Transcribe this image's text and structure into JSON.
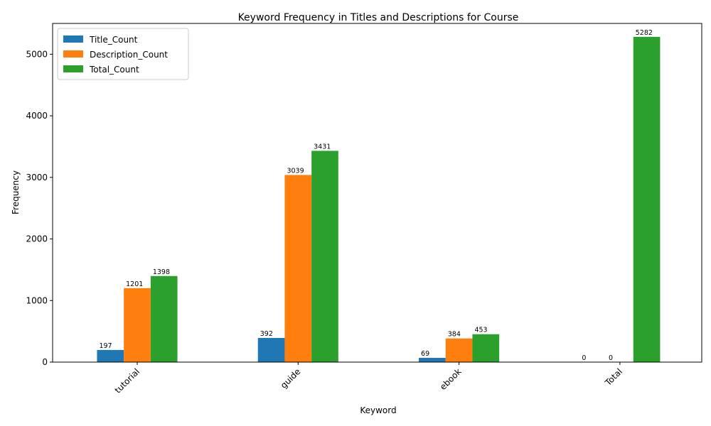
{
  "chart_data": {
    "type": "bar",
    "title": "Keyword Frequency in Titles and Descriptions for Course",
    "xlabel": "Keyword",
    "ylabel": "Frequency",
    "categories": [
      "tutorial",
      "guide",
      "ebook",
      "Total"
    ],
    "series": [
      {
        "name": "Title_Count",
        "color": "#1f77b4",
        "values": [
          197,
          392,
          69,
          0
        ]
      },
      {
        "name": "Description_Count",
        "color": "#ff7f0e",
        "values": [
          1201,
          3039,
          384,
          0
        ]
      },
      {
        "name": "Total_Count",
        "color": "#2ca02c",
        "values": [
          1398,
          3431,
          453,
          5282
        ]
      }
    ],
    "data_labels": [
      [
        "197",
        "392",
        "69",
        "0"
      ],
      [
        "1201",
        "3039",
        "384",
        "0"
      ],
      [
        "1398",
        "3431",
        "453",
        "5282"
      ]
    ],
    "ylim": [
      0,
      5500
    ],
    "yticks": [
      0,
      1000,
      2000,
      3000,
      4000,
      5000
    ],
    "grid": false,
    "legend_position": "top-left"
  }
}
